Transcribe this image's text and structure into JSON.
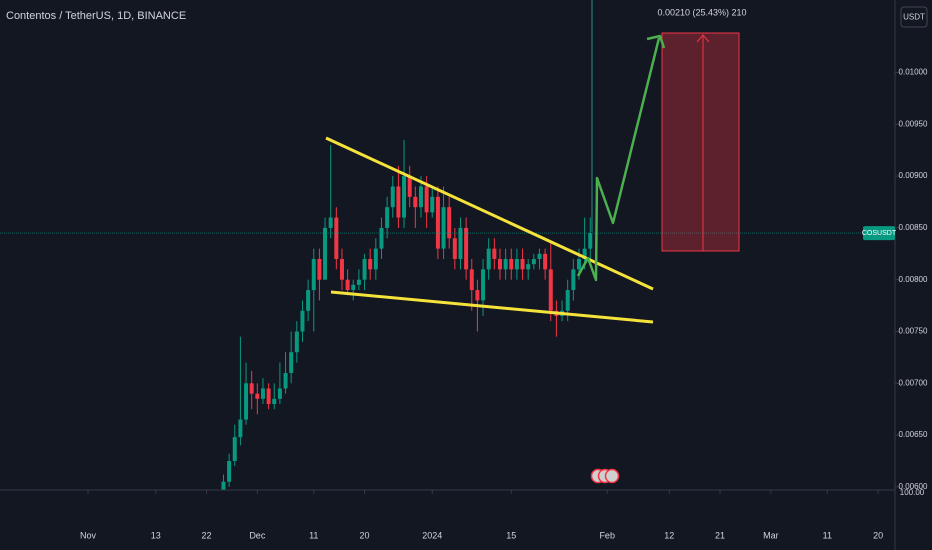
{
  "chart_data": {
    "type": "candlestick",
    "title": "Contentos / TetherUS, 1D, BINANCE",
    "currency_button": "USDT",
    "symbol_tag": "COSUSDT",
    "measure_label": "0.00210 (25.43%) 210",
    "scale_label": "100.00",
    "up_color": "#089981",
    "down_color": "#f23645",
    "xlim": [
      -15.6,
      143
    ],
    "ylim": [
      0.00597,
      0.0107
    ],
    "xticks": [
      {
        "value": 0,
        "label": "Nov"
      },
      {
        "value": 12,
        "label": "13"
      },
      {
        "value": 21,
        "label": "22"
      },
      {
        "value": 30,
        "label": "Dec"
      },
      {
        "value": 40,
        "label": "11"
      },
      {
        "value": 49,
        "label": "20"
      },
      {
        "value": 61,
        "label": "2024"
      },
      {
        "value": 75,
        "label": "15"
      },
      {
        "value": 92,
        "label": "Feb"
      },
      {
        "value": 103,
        "label": "12"
      },
      {
        "value": 112,
        "label": "21"
      },
      {
        "value": 121,
        "label": "Mar"
      },
      {
        "value": 131,
        "label": "11"
      },
      {
        "value": 140,
        "label": "20"
      }
    ],
    "yticks": [
      {
        "value": 0.01,
        "label": "0.01000"
      },
      {
        "value": 0.0095,
        "label": "0.00950"
      },
      {
        "value": 0.009,
        "label": "0.00900"
      },
      {
        "value": 0.0085,
        "label": "0.00850"
      },
      {
        "value": 0.008,
        "label": "0.00800"
      },
      {
        "value": 0.0075,
        "label": "0.00750"
      },
      {
        "value": 0.007,
        "label": "0.00700"
      },
      {
        "value": 0.0065,
        "label": "0.00650"
      },
      {
        "value": 0.006,
        "label": "0.00600"
      }
    ],
    "x": [
      24,
      25,
      26,
      27,
      28,
      29,
      30,
      31,
      32,
      33,
      34,
      35,
      36,
      37,
      38,
      39,
      40,
      41,
      42,
      43,
      44,
      45,
      46,
      47,
      48,
      49,
      50,
      51,
      52,
      53,
      54,
      55,
      56,
      57,
      58,
      59,
      60,
      61,
      62,
      63,
      64,
      65,
      66,
      67,
      68,
      69,
      70,
      71,
      72,
      73,
      74,
      75,
      76,
      77,
      78,
      79,
      80,
      81,
      82,
      83,
      84,
      85,
      86,
      87,
      88,
      89
    ],
    "open": [
      0.00595,
      0.00605,
      0.00625,
      0.00648,
      0.00665,
      0.007,
      0.0069,
      0.00685,
      0.00695,
      0.0068,
      0.00685,
      0.00695,
      0.0071,
      0.0073,
      0.0075,
      0.0077,
      0.0079,
      0.0082,
      0.008,
      0.0085,
      0.0086,
      0.0082,
      0.008,
      0.0079,
      0.00795,
      0.008,
      0.0082,
      0.0081,
      0.0083,
      0.0085,
      0.0087,
      0.0089,
      0.0086,
      0.009,
      0.0088,
      0.0087,
      0.0089,
      0.00865,
      0.0088,
      0.0083,
      0.0087,
      0.0084,
      0.0082,
      0.0085,
      0.0081,
      0.0079,
      0.0078,
      0.0081,
      0.0083,
      0.0082,
      0.0081,
      0.0082,
      0.0081,
      0.0082,
      0.0081,
      0.00815,
      0.0082,
      0.00825,
      0.0081,
      0.0077,
      0.00765,
      0.0077,
      0.0079,
      0.0081,
      0.0082,
      0.0083
    ],
    "high": [
      0.00612,
      0.00632,
      0.0066,
      0.00745,
      0.0072,
      0.00712,
      0.007,
      0.00705,
      0.007,
      0.007,
      0.0072,
      0.0073,
      0.0075,
      0.0076,
      0.0078,
      0.008,
      0.0083,
      0.0083,
      0.0086,
      0.0093,
      0.0087,
      0.0083,
      0.0081,
      0.008,
      0.0081,
      0.00825,
      0.0083,
      0.0084,
      0.0086,
      0.0088,
      0.009,
      0.0091,
      0.00935,
      0.0091,
      0.0089,
      0.009,
      0.009,
      0.0089,
      0.0089,
      0.0089,
      0.0088,
      0.0085,
      0.0086,
      0.0086,
      0.0082,
      0.008,
      0.0082,
      0.0084,
      0.0084,
      0.0083,
      0.0083,
      0.0083,
      0.0083,
      0.0083,
      0.0082,
      0.00825,
      0.0083,
      0.0083,
      0.00835,
      0.0078,
      0.0078,
      0.008,
      0.0082,
      0.0083,
      0.0086,
      0.0086
    ],
    "low": [
      0.0059,
      0.006,
      0.0062,
      0.0064,
      0.0066,
      0.00675,
      0.0067,
      0.0068,
      0.00675,
      0.00675,
      0.0068,
      0.0069,
      0.007,
      0.0072,
      0.0074,
      0.0076,
      0.0075,
      0.0078,
      0.008,
      0.0084,
      0.0081,
      0.0079,
      0.00785,
      0.0078,
      0.0079,
      0.0079,
      0.008,
      0.008,
      0.0082,
      0.0084,
      0.0086,
      0.0085,
      0.0085,
      0.0087,
      0.0085,
      0.0086,
      0.0085,
      0.0086,
      0.0082,
      0.0082,
      0.0083,
      0.0081,
      0.0081,
      0.008,
      0.0077,
      0.0075,
      0.00765,
      0.008,
      0.0081,
      0.008,
      0.008,
      0.008,
      0.008,
      0.008,
      0.008,
      0.0081,
      0.0081,
      0.008,
      0.0076,
      0.00745,
      0.0076,
      0.0076,
      0.0078,
      0.008,
      0.0081,
      0.0082
    ],
    "close": [
      0.00605,
      0.00625,
      0.00648,
      0.00665,
      0.007,
      0.0069,
      0.00685,
      0.00695,
      0.0068,
      0.00685,
      0.00695,
      0.0071,
      0.0073,
      0.0075,
      0.0077,
      0.0079,
      0.0082,
      0.008,
      0.0085,
      0.0086,
      0.0082,
      0.008,
      0.0079,
      0.00795,
      0.008,
      0.0082,
      0.0081,
      0.0083,
      0.0085,
      0.0087,
      0.0089,
      0.0086,
      0.009,
      0.0088,
      0.0087,
      0.0089,
      0.00865,
      0.0088,
      0.0083,
      0.0087,
      0.0084,
      0.0082,
      0.0085,
      0.0081,
      0.0079,
      0.0078,
      0.0081,
      0.0083,
      0.0082,
      0.0081,
      0.0082,
      0.0081,
      0.0082,
      0.0081,
      0.00815,
      0.0082,
      0.00825,
      0.0081,
      0.0077,
      0.00765,
      0.0077,
      0.0079,
      0.0081,
      0.0082,
      0.0083,
      0.00845
    ]
  }
}
